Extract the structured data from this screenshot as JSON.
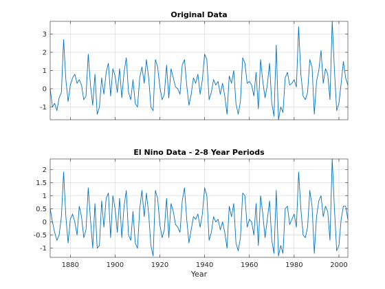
{
  "chart_data": [
    {
      "type": "line",
      "title": "Original Data",
      "xlabel": "",
      "ylabel": "",
      "xlim": [
        1871,
        2004
      ],
      "ylim": [
        -1.7,
        3.7
      ],
      "grid": true,
      "xticks": [
        1880,
        1900,
        1920,
        1940,
        1960,
        1980,
        2000
      ],
      "show_xtick_labels": false,
      "yticks": [
        -1,
        0,
        1,
        2,
        3
      ],
      "ytick_labels": [
        "-1",
        "0",
        "1",
        "2",
        "3"
      ],
      "series": [
        {
          "color": "#0072bd",
          "x": [
            1871,
            1872,
            1873,
            1874,
            1875,
            1876,
            1877,
            1878,
            1879,
            1880,
            1881,
            1882,
            1883,
            1884,
            1885,
            1886,
            1887,
            1888,
            1889,
            1890,
            1891,
            1892,
            1893,
            1894,
            1895,
            1896,
            1897,
            1898,
            1899,
            1900,
            1901,
            1902,
            1903,
            1904,
            1905,
            1906,
            1907,
            1908,
            1909,
            1910,
            1911,
            1912,
            1913,
            1914,
            1915,
            1916,
            1917,
            1918,
            1919,
            1920,
            1921,
            1922,
            1923,
            1924,
            1925,
            1926,
            1927,
            1928,
            1929,
            1930,
            1931,
            1932,
            1933,
            1934,
            1935,
            1936,
            1937,
            1938,
            1939,
            1940,
            1941,
            1942,
            1943,
            1944,
            1945,
            1946,
            1947,
            1948,
            1949,
            1950,
            1951,
            1952,
            1953,
            1954,
            1955,
            1956,
            1957,
            1958,
            1959,
            1960,
            1961,
            1962,
            1963,
            1964,
            1965,
            1966,
            1967,
            1968,
            1969,
            1970,
            1971,
            1972,
            1973,
            1974,
            1975,
            1976,
            1977,
            1978,
            1979,
            1980,
            1981,
            1982,
            1983,
            1984,
            1985,
            1986,
            1987,
            1988,
            1989,
            1990,
            1991,
            1992,
            1993,
            1994,
            1995,
            1996,
            1997,
            1998,
            1999,
            2000,
            2001,
            2002,
            2003,
            2004
          ],
          "y": [
            0.0,
            -1.0,
            -0.8,
            -1.2,
            -0.5,
            -0.2,
            2.7,
            0.5,
            -0.7,
            0.2,
            0.6,
            0.8,
            0.3,
            0.5,
            0.2,
            -0.6,
            -0.4,
            1.9,
            0.2,
            -0.9,
            0.8,
            -1.4,
            -1.0,
            0.6,
            -0.3,
            0.9,
            1.4,
            -0.4,
            1.1,
            0.7,
            -0.2,
            1.1,
            -0.5,
            0.9,
            1.7,
            -0.2,
            -0.6,
            0.5,
            -0.8,
            -1.0,
            0.6,
            1.2,
            0.3,
            1.6,
            0.6,
            -1.0,
            -1.2,
            1.6,
            1.2,
            0.1,
            -0.6,
            -0.3,
            1.3,
            -0.5,
            1.1,
            0.6,
            0.1,
            0.0,
            -0.3,
            1.3,
            1.6,
            0.2,
            -0.9,
            -0.3,
            0.6,
            0.3,
            0.8,
            -0.3,
            0.5,
            1.9,
            1.6,
            -0.6,
            -0.2,
            0.5,
            0.2,
            0.4,
            -0.3,
            0.3,
            -0.4,
            -1.4,
            0.7,
            0.3,
            1.0,
            -0.8,
            -1.4,
            -0.7,
            1.7,
            1.4,
            0.3,
            0.4,
            0.2,
            -0.4,
            0.9,
            -1.1,
            1.6,
            0.4,
            -0.5,
            0.2,
            1.4,
            -0.8,
            -1.5,
            2.4,
            -1.7,
            -1.0,
            -1.3,
            0.6,
            0.9,
            0.2,
            0.3,
            0.5,
            0.1,
            3.4,
            0.8,
            -0.4,
            -0.6,
            -0.2,
            1.6,
            1.2,
            -1.4,
            0.4,
            1.0,
            2.1,
            0.3,
            1.1,
            0.8,
            -0.6,
            3.7,
            1.0,
            -1.2,
            -0.8,
            0.3,
            1.5,
            0.6,
            0.2
          ]
        }
      ]
    },
    {
      "type": "line",
      "title": "El Nino Data - 2-8 Year Periods",
      "xlabel": "Year",
      "ylabel": "",
      "xlim": [
        1871,
        2004
      ],
      "ylim": [
        -1.35,
        2.4
      ],
      "grid": true,
      "xticks": [
        1880,
        1900,
        1920,
        1940,
        1960,
        1980,
        2000
      ],
      "xtick_labels": [
        "1880",
        "1900",
        "1920",
        "1940",
        "1960",
        "1980",
        "2000"
      ],
      "show_xtick_labels": true,
      "yticks": [
        -1,
        -0.5,
        0,
        0.5,
        1,
        1.5,
        2
      ],
      "ytick_labels": [
        "-1",
        "-0.5",
        "0",
        "0.5",
        "1",
        "1.5",
        "2"
      ],
      "series": [
        {
          "color": "#0072bd",
          "x": [
            1871,
            1872,
            1873,
            1874,
            1875,
            1876,
            1877,
            1878,
            1879,
            1880,
            1881,
            1882,
            1883,
            1884,
            1885,
            1886,
            1887,
            1888,
            1889,
            1890,
            1891,
            1892,
            1893,
            1894,
            1895,
            1896,
            1897,
            1898,
            1899,
            1900,
            1901,
            1902,
            1903,
            1904,
            1905,
            1906,
            1907,
            1908,
            1909,
            1910,
            1911,
            1912,
            1913,
            1914,
            1915,
            1916,
            1917,
            1918,
            1919,
            1920,
            1921,
            1922,
            1923,
            1924,
            1925,
            1926,
            1927,
            1928,
            1929,
            1930,
            1931,
            1932,
            1933,
            1934,
            1935,
            1936,
            1937,
            1938,
            1939,
            1940,
            1941,
            1942,
            1943,
            1944,
            1945,
            1946,
            1947,
            1948,
            1949,
            1950,
            1951,
            1952,
            1953,
            1954,
            1955,
            1956,
            1957,
            1958,
            1959,
            1960,
            1961,
            1962,
            1963,
            1964,
            1965,
            1966,
            1967,
            1968,
            1969,
            1970,
            1971,
            1972,
            1973,
            1974,
            1975,
            1976,
            1977,
            1978,
            1979,
            1980,
            1981,
            1982,
            1983,
            1984,
            1985,
            1986,
            1987,
            1988,
            1989,
            1990,
            1991,
            1992,
            1993,
            1994,
            1995,
            1996,
            1997,
            1998,
            1999,
            2000,
            2001,
            2002,
            2003,
            2004
          ],
          "y": [
            0.5,
            0.0,
            -0.4,
            -0.7,
            -0.5,
            0.2,
            1.9,
            0.2,
            -0.8,
            0.1,
            0.3,
            0.0,
            -0.5,
            0.6,
            0.2,
            -0.6,
            -0.3,
            1.3,
            0.1,
            -1.0,
            0.7,
            -1.0,
            -0.9,
            0.8,
            -0.2,
            0.9,
            1.1,
            -0.6,
            1.0,
            0.5,
            -0.4,
            0.9,
            -0.6,
            0.6,
            1.2,
            -0.5,
            -0.7,
            0.4,
            -0.8,
            -1.0,
            0.5,
            1.2,
            0.2,
            1.1,
            0.3,
            -0.9,
            -1.3,
            1.2,
            0.9,
            -0.1,
            -0.6,
            -0.3,
            0.9,
            -0.6,
            0.7,
            0.4,
            -0.1,
            -0.2,
            -0.4,
            0.8,
            1.3,
            0.1,
            -0.8,
            -0.3,
            0.2,
            0.1,
            0.3,
            -0.2,
            0.3,
            1.3,
            1.0,
            -0.7,
            -0.4,
            0.2,
            0.0,
            0.1,
            -0.3,
            0.0,
            -0.4,
            -1.0,
            0.6,
            0.2,
            0.7,
            -0.8,
            -1.1,
            -0.6,
            1.1,
            1.0,
            -0.2,
            0.1,
            0.0,
            -0.5,
            0.7,
            -0.9,
            1.0,
            0.3,
            -0.6,
            0.1,
            0.8,
            -0.7,
            -1.2,
            1.2,
            -1.3,
            -0.9,
            -1.2,
            0.5,
            0.6,
            -0.1,
            0.1,
            0.3,
            -0.2,
            1.9,
            0.5,
            -0.5,
            -0.6,
            -0.2,
            1.2,
            0.6,
            -1.2,
            0.2,
            0.8,
            1.0,
            0.2,
            0.6,
            0.4,
            -0.7,
            2.4,
            0.5,
            -1.1,
            -0.9,
            0.1,
            0.6,
            0.6,
            0.1
          ]
        }
      ]
    }
  ]
}
